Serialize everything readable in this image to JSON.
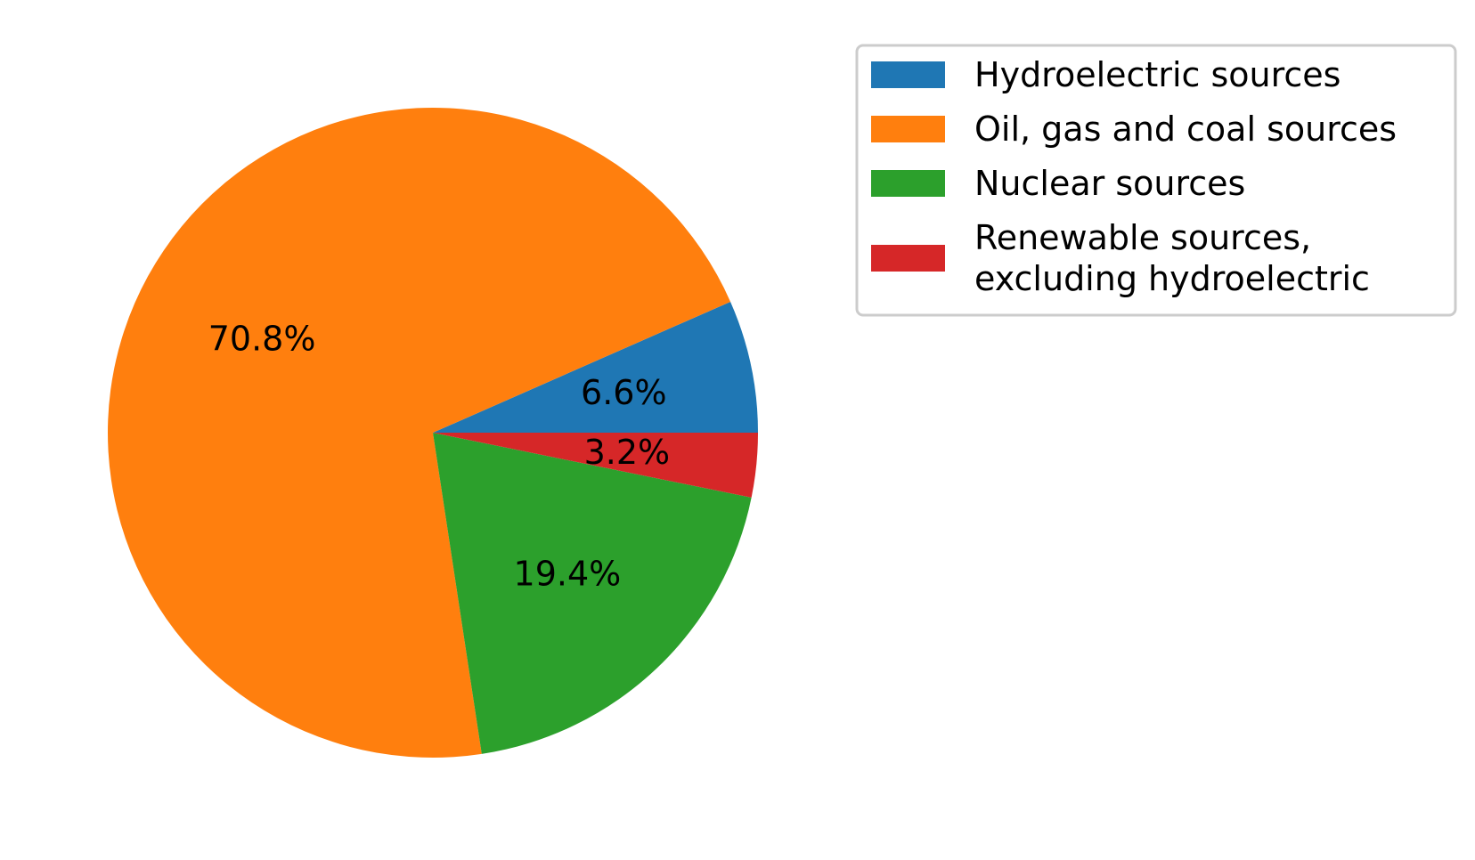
{
  "chart_data": {
    "type": "pie",
    "labels": [
      "Hydroelectric sources",
      "Oil, gas and coal sources",
      "Nuclear sources",
      "Renewable sources,\nexcluding hydroelectric"
    ],
    "values": [
      6.6,
      70.8,
      19.4,
      3.2
    ],
    "value_labels": [
      "6.6%",
      "70.8%",
      "19.4%",
      "3.2%"
    ],
    "colors": [
      "#1f77b4",
      "#ff7f0e",
      "#2ca02c",
      "#d62728"
    ],
    "start_angle_deg": 0,
    "direction": "counterclockwise",
    "legend_placement": "upper right, outside"
  }
}
